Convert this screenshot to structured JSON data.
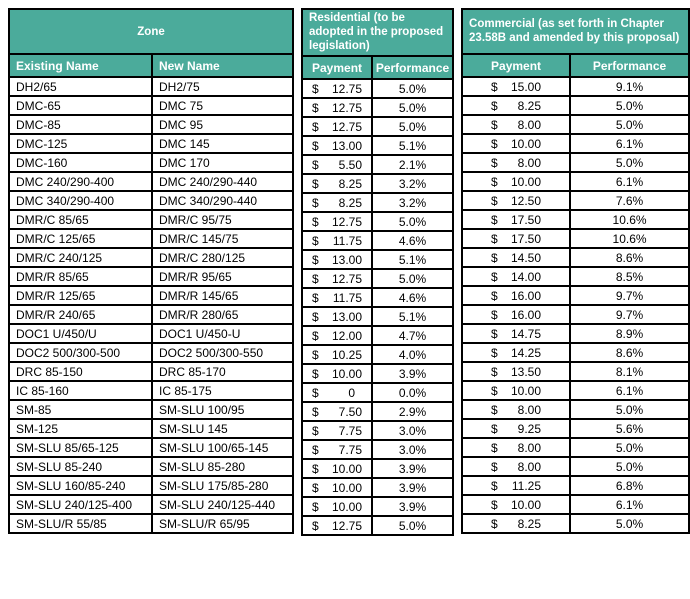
{
  "colors": {
    "header_bg": "#4BAB9B",
    "header_text": "#ffffff",
    "border": "#000000",
    "cell_text": "#000000",
    "page_bg": "#ffffff"
  },
  "table": {
    "currency_symbol": "$",
    "groups": [
      {
        "title": "Zone",
        "columns": [
          "Existing Name",
          "New Name"
        ]
      },
      {
        "title": "Residential (to be adopted in the proposed legislation)",
        "columns": [
          "Payment",
          "Performance"
        ]
      },
      {
        "title": "Commercial (as set forth in Chapter 23.58B and amended by this proposal)",
        "columns": [
          "Payment",
          "Performance"
        ]
      }
    ],
    "rows": [
      {
        "existing": "DH2/65",
        "new": "DH2/75",
        "res_payment": "12.75",
        "res_performance": "5.0%",
        "com_payment": "15.00",
        "com_performance": "9.1%"
      },
      {
        "existing": "DMC-65",
        "new": "DMC 75",
        "res_payment": "12.75",
        "res_performance": "5.0%",
        "com_payment": "8.25",
        "com_performance": "5.0%"
      },
      {
        "existing": "DMC-85",
        "new": "DMC 95",
        "res_payment": "12.75",
        "res_performance": "5.0%",
        "com_payment": "8.00",
        "com_performance": "5.0%"
      },
      {
        "existing": "DMC-125",
        "new": "DMC 145",
        "res_payment": "13.00",
        "res_performance": "5.1%",
        "com_payment": "10.00",
        "com_performance": "6.1%"
      },
      {
        "existing": "DMC-160",
        "new": "DMC 170",
        "res_payment": "5.50",
        "res_performance": "2.1%",
        "com_payment": "8.00",
        "com_performance": "5.0%"
      },
      {
        "existing": "DMC 240/290-400",
        "new": "DMC 240/290-440",
        "res_payment": "8.25",
        "res_performance": "3.2%",
        "com_payment": "10.00",
        "com_performance": "6.1%"
      },
      {
        "existing": "DMC 340/290-400",
        "new": "DMC 340/290-440",
        "res_payment": "8.25",
        "res_performance": "3.2%",
        "com_payment": "12.50",
        "com_performance": "7.6%"
      },
      {
        "existing": "DMR/C 85/65",
        "new": "DMR/C 95/75",
        "res_payment": "12.75",
        "res_performance": "5.0%",
        "com_payment": "17.50",
        "com_performance": "10.6%"
      },
      {
        "existing": "DMR/C 125/65",
        "new": "DMR/C 145/75",
        "res_payment": "11.75",
        "res_performance": "4.6%",
        "com_payment": "17.50",
        "com_performance": "10.6%"
      },
      {
        "existing": "DMR/C 240/125",
        "new": "DMR/C 280/125",
        "res_payment": "13.00",
        "res_performance": "5.1%",
        "com_payment": "14.50",
        "com_performance": "8.6%"
      },
      {
        "existing": "DMR/R 85/65",
        "new": "DMR/R 95/65",
        "res_payment": "12.75",
        "res_performance": "5.0%",
        "com_payment": "14.00",
        "com_performance": "8.5%"
      },
      {
        "existing": "DMR/R 125/65",
        "new": "DMR/R 145/65",
        "res_payment": "11.75",
        "res_performance": "4.6%",
        "com_payment": "16.00",
        "com_performance": "9.7%"
      },
      {
        "existing": "DMR/R 240/65",
        "new": "DMR/R 280/65",
        "res_payment": "13.00",
        "res_performance": "5.1%",
        "com_payment": "16.00",
        "com_performance": "9.7%"
      },
      {
        "existing": "DOC1 U/450/U",
        "new": "DOC1 U/450-U",
        "res_payment": "12.00",
        "res_performance": "4.7%",
        "com_payment": "14.75",
        "com_performance": "8.9%"
      },
      {
        "existing": "DOC2 500/300-500",
        "new": "DOC2 500/300-550",
        "res_payment": "10.25",
        "res_performance": "4.0%",
        "com_payment": "14.25",
        "com_performance": "8.6%"
      },
      {
        "existing": "DRC 85-150",
        "new": "DRC 85-170",
        "res_payment": "10.00",
        "res_performance": "3.9%",
        "com_payment": "13.50",
        "com_performance": "8.1%"
      },
      {
        "existing": "IC 85-160",
        "new": "IC 85-175",
        "res_payment": "0",
        "res_performance": "0.0%",
        "com_payment": "10.00",
        "com_performance": "6.1%"
      },
      {
        "existing": "SM-85",
        "new": "SM-SLU 100/95",
        "res_payment": "7.50",
        "res_performance": "2.9%",
        "com_payment": "8.00",
        "com_performance": "5.0%"
      },
      {
        "existing": "SM-125",
        "new": "SM-SLU 145",
        "res_payment": "7.75",
        "res_performance": "3.0%",
        "com_payment": "9.25",
        "com_performance": "5.6%"
      },
      {
        "existing": "SM-SLU 85/65-125",
        "new": "SM-SLU 100/65-145",
        "res_payment": "7.75",
        "res_performance": "3.0%",
        "com_payment": "8.00",
        "com_performance": "5.0%"
      },
      {
        "existing": "SM-SLU 85-240",
        "new": "SM-SLU 85-280",
        "res_payment": "10.00",
        "res_performance": "3.9%",
        "com_payment": "8.00",
        "com_performance": "5.0%"
      },
      {
        "existing": "SM-SLU 160/85-240",
        "new": "SM-SLU 175/85-280",
        "res_payment": "10.00",
        "res_performance": "3.9%",
        "com_payment": "11.25",
        "com_performance": "6.8%"
      },
      {
        "existing": "SM-SLU 240/125-400",
        "new": "SM-SLU 240/125-440",
        "res_payment": "10.00",
        "res_performance": "3.9%",
        "com_payment": "10.00",
        "com_performance": "6.1%"
      },
      {
        "existing": "SM-SLU/R 55/85",
        "new": "SM-SLU/R 65/95",
        "res_payment": "12.75",
        "res_performance": "5.0%",
        "com_payment": "8.25",
        "com_performance": "5.0%"
      }
    ]
  }
}
